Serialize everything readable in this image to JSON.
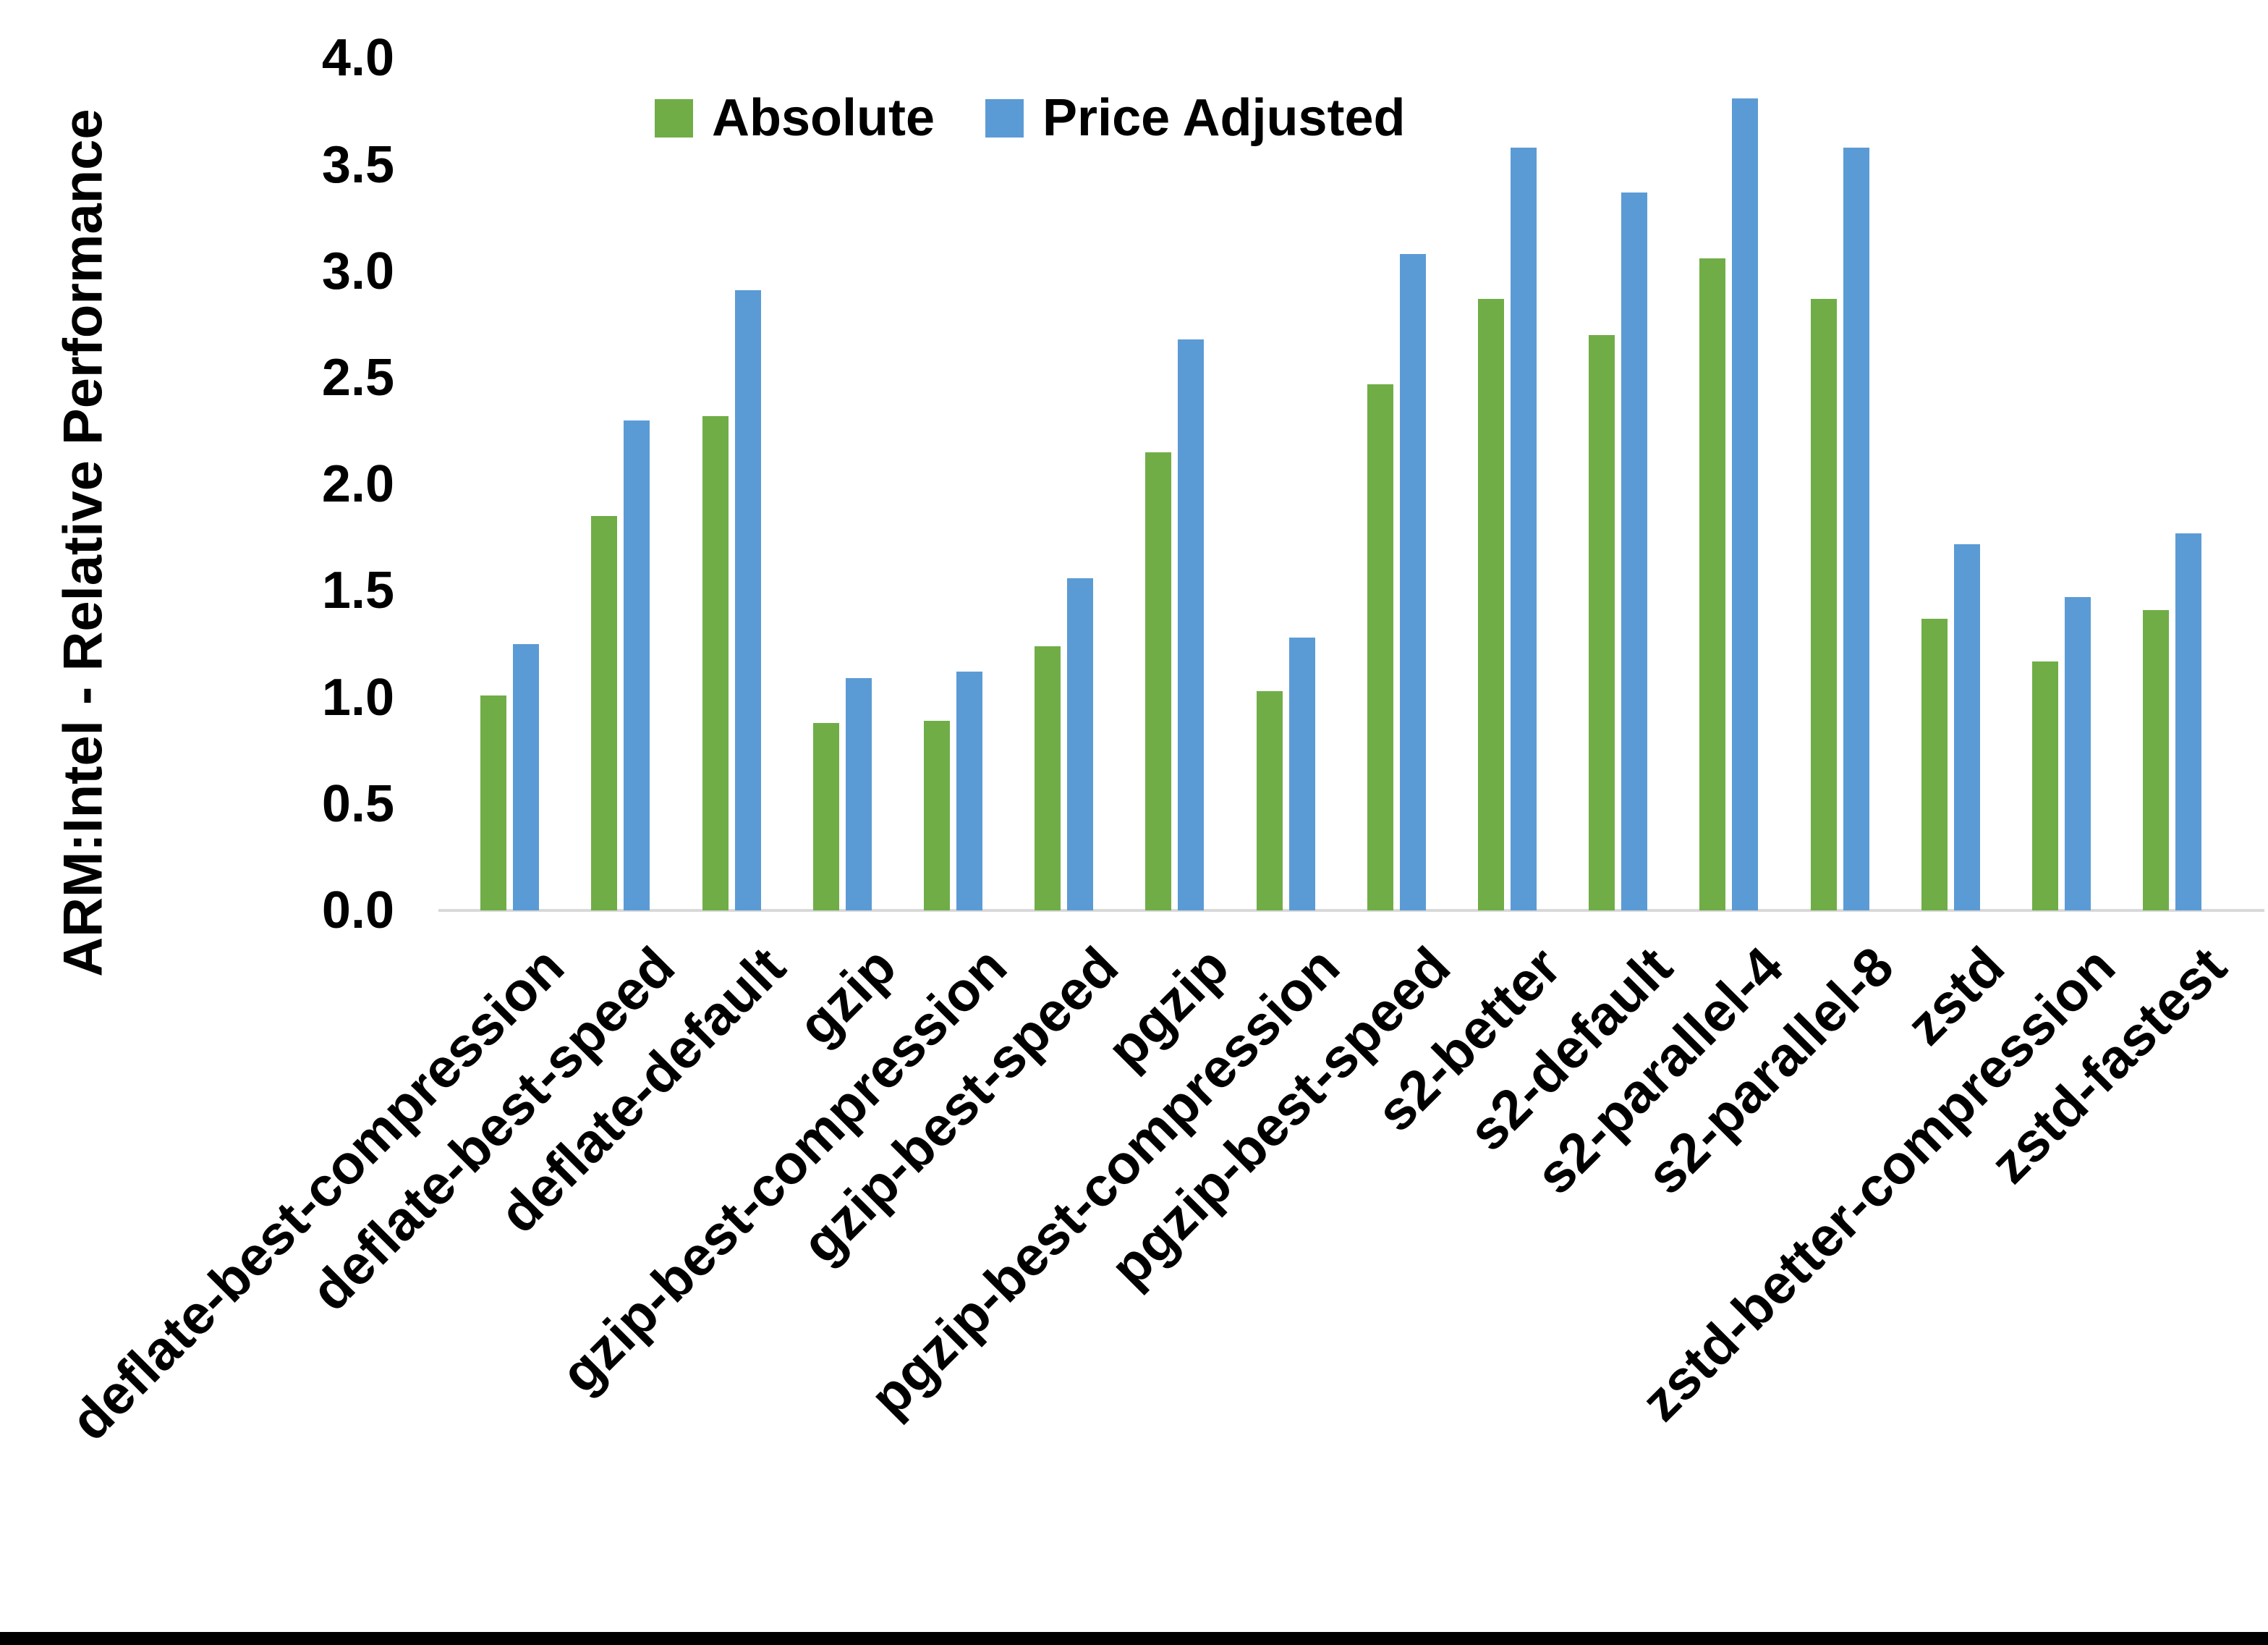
{
  "chart_data": {
    "type": "bar",
    "title": "",
    "xlabel": "",
    "ylabel": "ARM:Intel - Relative Performance",
    "ylim": [
      0.0,
      4.0
    ],
    "ytick_interval": 0.5,
    "ytick_labels": [
      "0.0",
      "0.5",
      "1.0",
      "1.5",
      "2.0",
      "2.5",
      "3.0",
      "3.5",
      "4.0"
    ],
    "grid": false,
    "legend_position": "top-center",
    "categories": [
      "deflate-best-compression",
      "deflate-best-speed",
      "deflate-default",
      "gzip",
      "gzip-best-compression",
      "gzip-best-speed",
      "pgzip",
      "pgzip-best-compression",
      "pgzip-best-speed",
      "s2-better",
      "s2-default",
      "s2-parallel-4",
      "s2-parallel-8",
      "zstd",
      "zstd-better-compression",
      "zstd-fastest"
    ],
    "series": [
      {
        "name": "Absolute",
        "color": "#70AD47",
        "values": [
          1.01,
          1.85,
          2.32,
          0.88,
          0.89,
          1.24,
          2.15,
          1.03,
          2.47,
          2.87,
          2.7,
          3.06,
          2.87,
          1.37,
          1.17,
          1.41
        ]
      },
      {
        "name": "Price Adjusted",
        "color": "#5B9BD5",
        "values": [
          1.25,
          2.3,
          2.91,
          1.09,
          1.12,
          1.56,
          2.68,
          1.28,
          3.08,
          3.58,
          3.37,
          3.81,
          3.58,
          1.72,
          1.47,
          1.77
        ]
      }
    ]
  },
  "colors": {
    "background": "#FFFFFF",
    "text": "#000000",
    "axis_line": "#D9D9D9",
    "bottom_bar": "#000000"
  }
}
